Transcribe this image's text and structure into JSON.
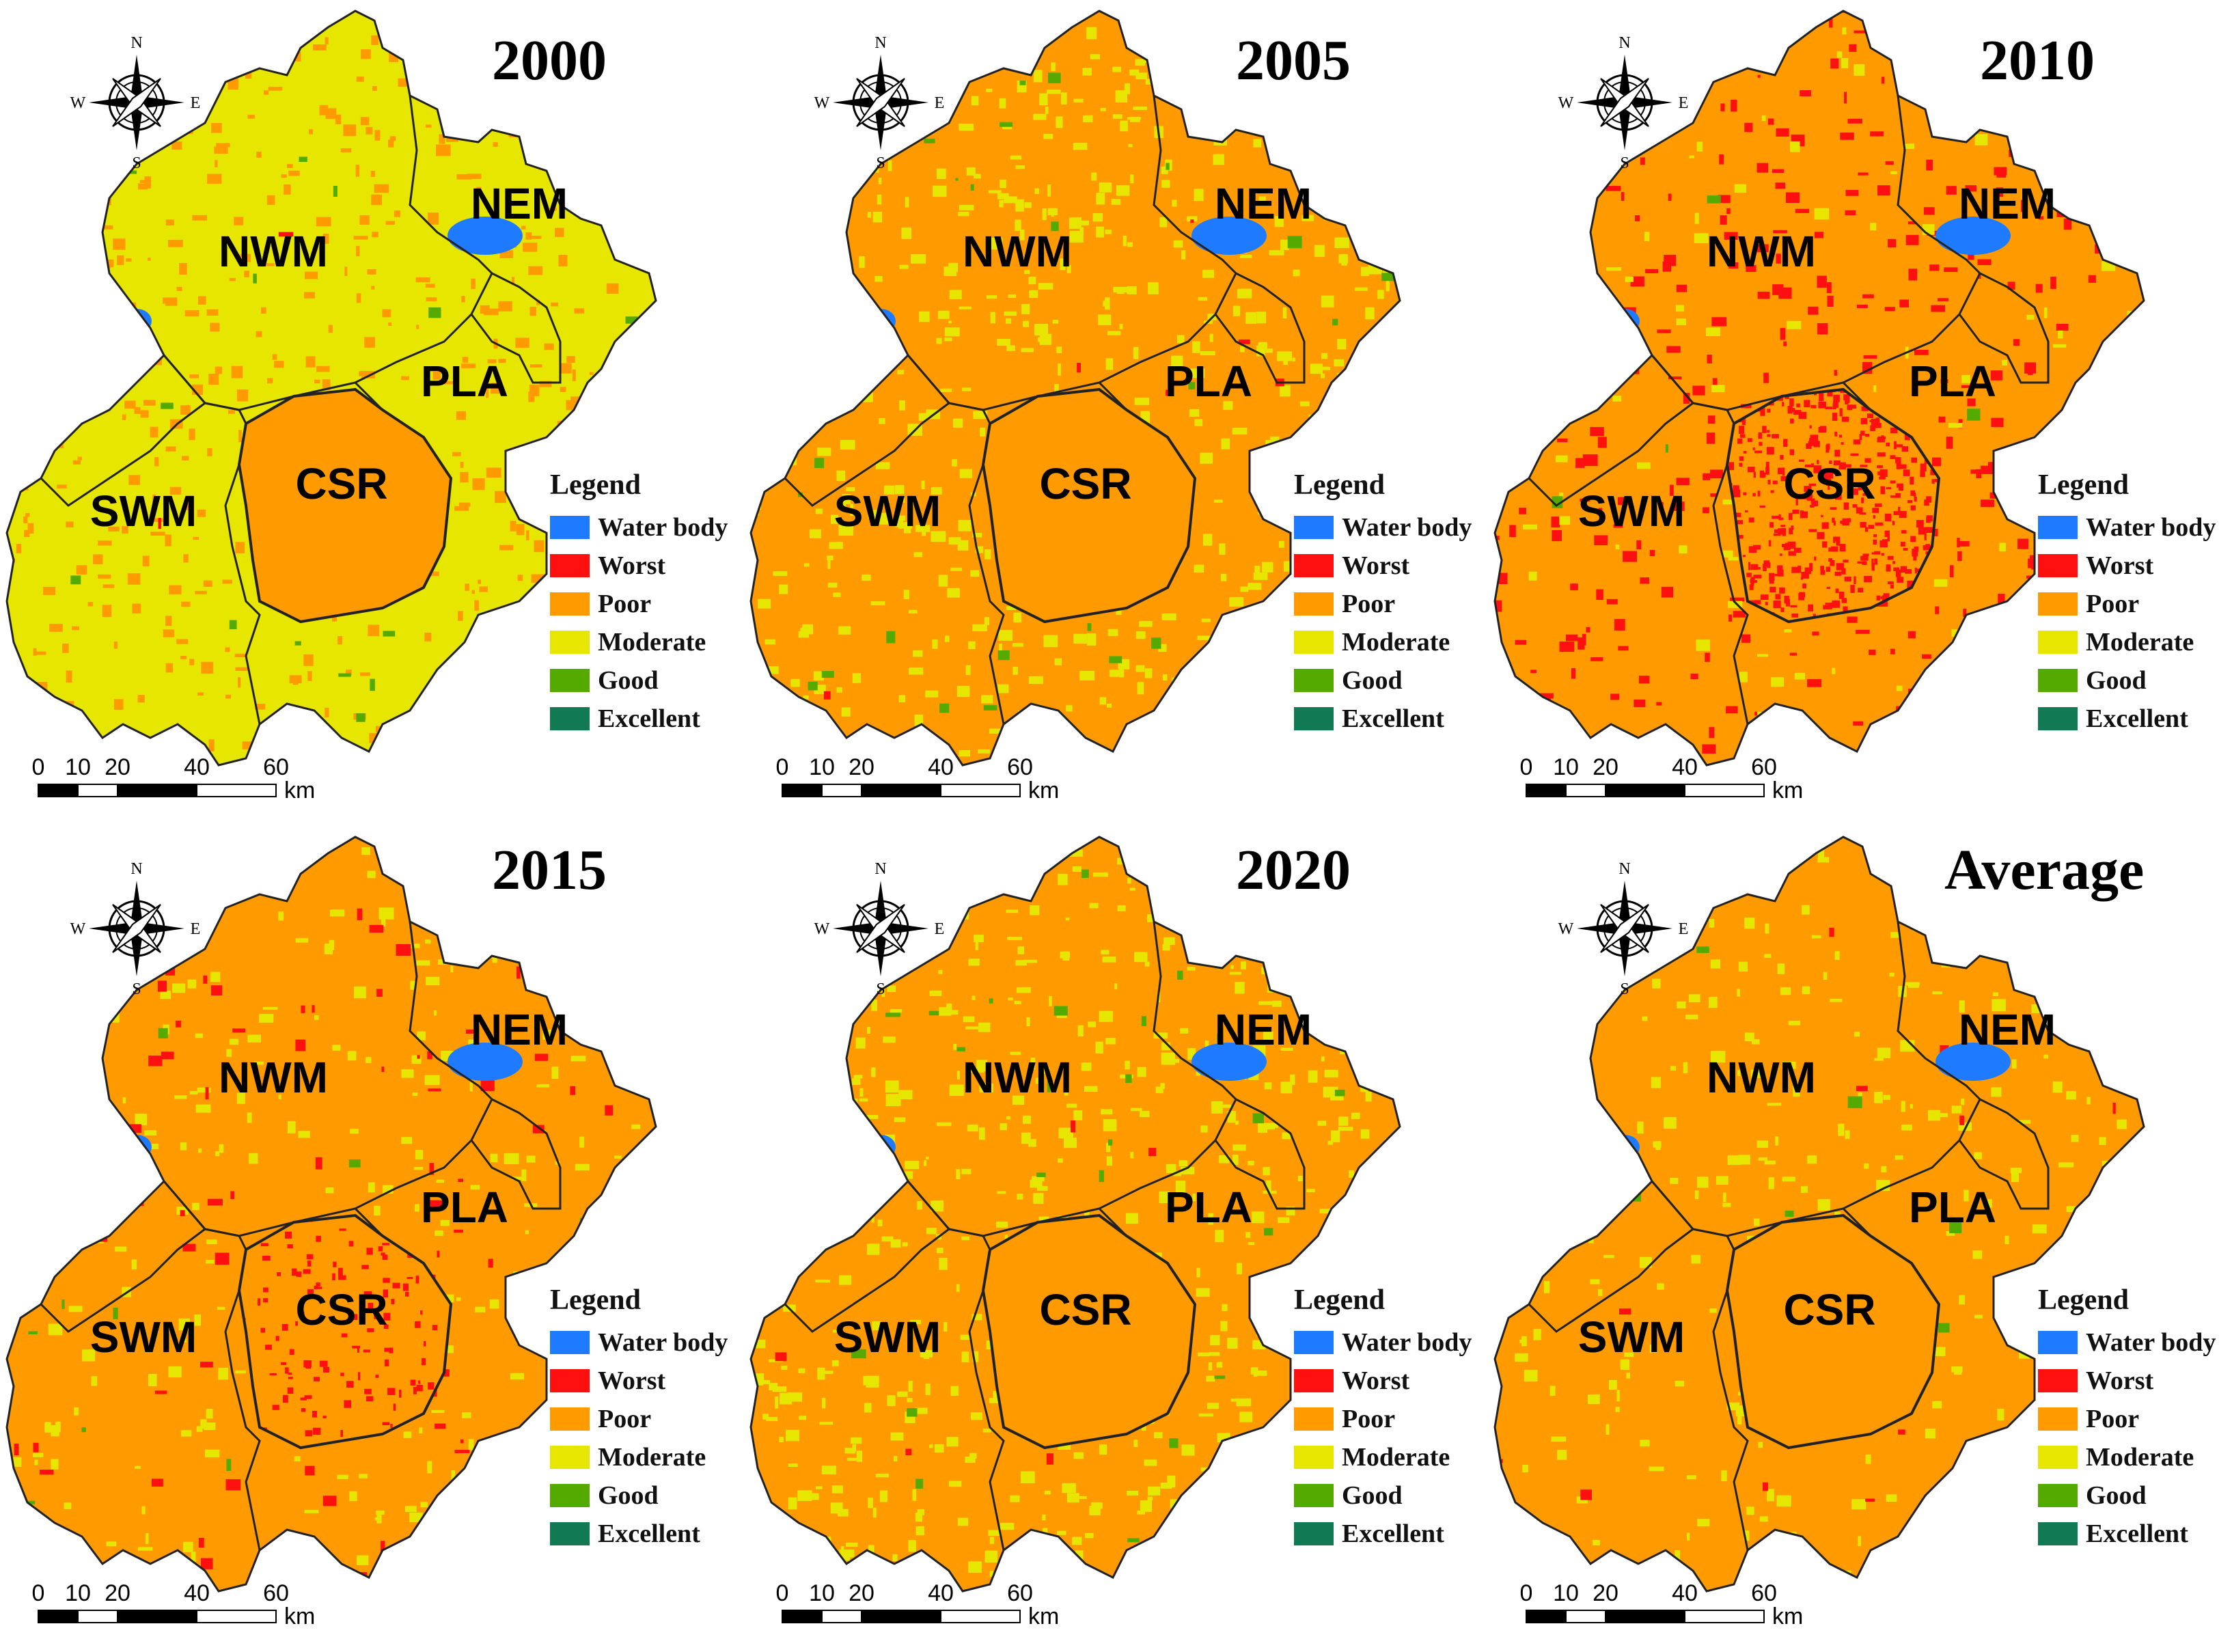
{
  "figure": {
    "panels": [
      {
        "title": "2000",
        "scheme": "moderate"
      },
      {
        "title": "2005",
        "scheme": "mixed"
      },
      {
        "title": "2010",
        "scheme": "worst"
      },
      {
        "title": "2015",
        "scheme": "poor-red"
      },
      {
        "title": "2020",
        "scheme": "mixed"
      },
      {
        "title": "Average",
        "scheme": "poor"
      }
    ],
    "regions": [
      "NWM",
      "NEM",
      "PLA",
      "SWM",
      "CSR"
    ],
    "compass": {
      "n": "N",
      "s": "S",
      "e": "E",
      "w": "W"
    },
    "scale_bar": {
      "ticks": [
        "0",
        "10",
        "20",
        "40",
        "60"
      ],
      "unit": "km"
    },
    "legend": {
      "title": "Legend",
      "items": [
        {
          "label": "Water body",
          "color": "#1e7bff"
        },
        {
          "label": "Worst",
          "color": "#ff1010"
        },
        {
          "label": "Poor",
          "color": "#ff9a00"
        },
        {
          "label": "Moderate",
          "color": "#e6e600"
        },
        {
          "label": "Good",
          "color": "#55aa00"
        },
        {
          "label": "Excellent",
          "color": "#117a55"
        }
      ]
    }
  }
}
